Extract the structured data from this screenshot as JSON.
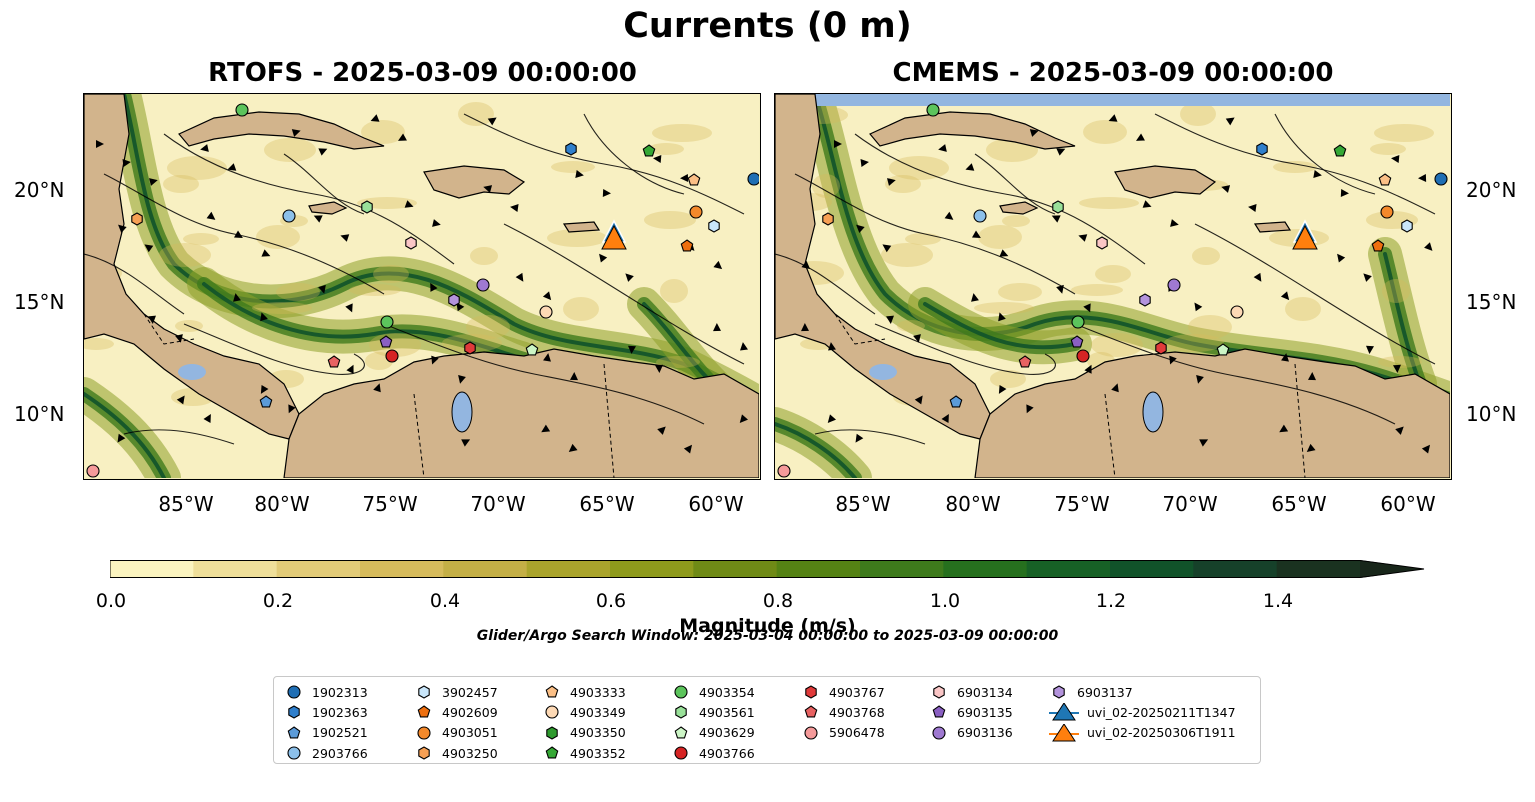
{
  "title": "Currents (0 m)",
  "panels": [
    {
      "id": "left",
      "title": "RTOFS - 2025-03-09 00:00:00"
    },
    {
      "id": "right",
      "title": "CMEMS - 2025-03-09 00:00:00"
    }
  ],
  "axes": {
    "lon_ticks": [
      "85°W",
      "80°W",
      "75°W",
      "70°W",
      "65°W",
      "60°W"
    ],
    "lat_ticks": [
      "20°N",
      "15°N",
      "10°N"
    ]
  },
  "colorbar": {
    "label": "Magnitude (m/s)",
    "ticks": [
      "0.0",
      "0.2",
      "0.4",
      "0.6",
      "0.8",
      "1.0",
      "1.2",
      "1.4"
    ],
    "range": [
      0,
      1.5
    ],
    "extend": "max",
    "colors": [
      "#fbf4c0",
      "#efdf9a",
      "#e2cb78",
      "#d6bb5c",
      "#c4af46",
      "#aaa42c",
      "#8e9a1c",
      "#6f8a16",
      "#558214",
      "#3e7a1c",
      "#26701e",
      "#176126",
      "#11532a",
      "#16412a",
      "#1a3220",
      "#18261a"
    ]
  },
  "search_window": "Glider/Argo Search Window: 2025-03-04 00:00:00 to 2025-03-09 00:00:00",
  "legend": {
    "columns": [
      [
        {
          "label": "1902313",
          "marker": "circle",
          "color": "#1f6eb4"
        },
        {
          "label": "1902363",
          "marker": "hexagon",
          "color": "#2f7fcc"
        },
        {
          "label": "1902521",
          "marker": "pentagon",
          "color": "#5b9bd9"
        },
        {
          "label": "2903766",
          "marker": "circle",
          "color": "#8cc0ea"
        }
      ],
      [
        {
          "label": "3902457",
          "marker": "hexagon",
          "color": "#c9e6fa"
        },
        {
          "label": "4902609",
          "marker": "pentagon",
          "color": "#ee6f0f"
        },
        {
          "label": "4903051",
          "marker": "circle",
          "color": "#f4892b"
        },
        {
          "label": "4903250",
          "marker": "hexagon",
          "color": "#f7a054"
        }
      ],
      [
        {
          "label": "4903333",
          "marker": "pentagon",
          "color": "#fbbf86"
        },
        {
          "label": "4903349",
          "marker": "circle",
          "color": "#fdd9b5"
        },
        {
          "label": "4903350",
          "marker": "hexagon",
          "color": "#2e9a2e"
        },
        {
          "label": "4903352",
          "marker": "pentagon",
          "color": "#35a835"
        }
      ],
      [
        {
          "label": "4903354",
          "marker": "circle",
          "color": "#5cc45c"
        },
        {
          "label": "4903561",
          "marker": "hexagon",
          "color": "#99e099"
        },
        {
          "label": "4903629",
          "marker": "pentagon",
          "color": "#ccf5c6"
        },
        {
          "label": "4903766",
          "marker": "circle",
          "color": "#d62424"
        }
      ],
      [
        {
          "label": "4903767",
          "marker": "hexagon",
          "color": "#e03a3a"
        },
        {
          "label": "4903768",
          "marker": "pentagon",
          "color": "#e86262"
        },
        {
          "label": "5906478",
          "marker": "circle",
          "color": "#f59a9a"
        }
      ],
      [
        {
          "label": "6903134",
          "marker": "hexagon",
          "color": "#fac6c6"
        },
        {
          "label": "6903135",
          "marker": "pentagon",
          "color": "#8a5fc2"
        },
        {
          "label": "6903136",
          "marker": "circle",
          "color": "#9f79d1"
        }
      ],
      [
        {
          "label": "6903137",
          "marker": "hexagon",
          "color": "#b393dc"
        },
        {
          "label": "uvi_02-20250211T1347",
          "marker": "triangle-line",
          "color": "#1f77b4"
        },
        {
          "label": "uvi_02-20250306T1911",
          "marker": "triangle-line",
          "color": "#ff7f0e"
        }
      ]
    ]
  }
}
